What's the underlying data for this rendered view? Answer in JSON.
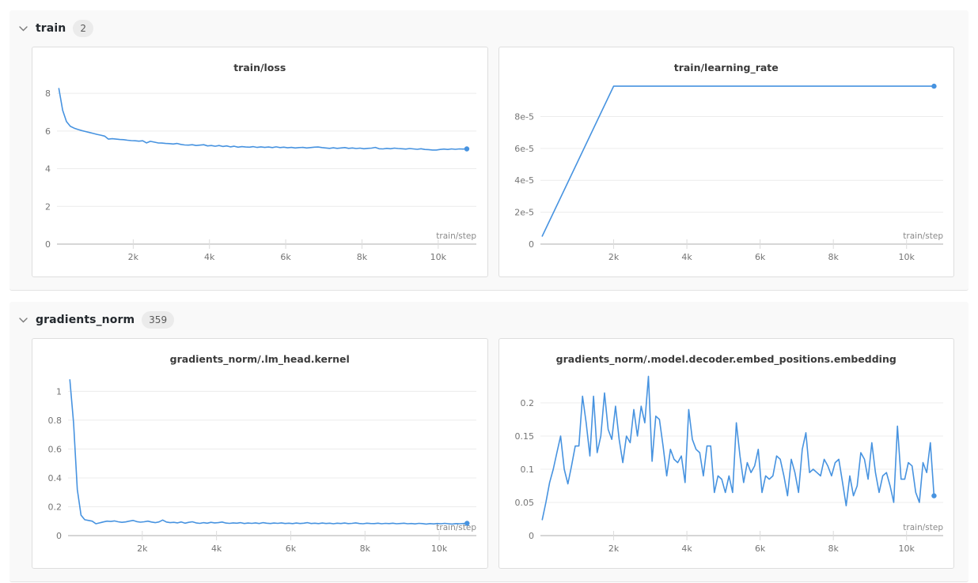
{
  "theme": {
    "line_color": "#4793e0",
    "grid_color": "#ececec",
    "baseline_color": "#c9c9c9",
    "tick_color": "#dcdcdc",
    "axis_text_color": "#757575",
    "axis_label_color": "#8a8a8a",
    "section_bg": "#f9f9f9",
    "panel_border": "#dedede"
  },
  "icons": {
    "section_collapse": "chevron-down-icon"
  },
  "sections": [
    {
      "title": "train",
      "count": "2",
      "chart_indexes": [
        0,
        1
      ]
    },
    {
      "title": "gradients_norm",
      "count": "359",
      "chart_indexes": [
        2,
        3
      ]
    }
  ],
  "chart_data": [
    {
      "type": "line",
      "title": "train/loss",
      "xlabel": "train/step",
      "legend_position": "none",
      "grid": "horizontal",
      "xlim": [
        0,
        11000
      ],
      "ylim": [
        0,
        8.8
      ],
      "xticks": {
        "values": [
          2000,
          4000,
          6000,
          8000,
          10000
        ],
        "labels": [
          "2k",
          "4k",
          "6k",
          "8k",
          "10k"
        ]
      },
      "yticks": {
        "values": [
          0,
          2,
          4,
          6,
          8
        ],
        "labels": [
          "0",
          "2",
          "4",
          "6",
          "8"
        ]
      },
      "end_dot": true,
      "x": [
        50,
        150,
        250,
        350,
        450,
        550,
        650,
        750,
        850,
        950,
        1050,
        1150,
        1250,
        1350,
        1450,
        1550,
        1650,
        1750,
        1850,
        1950,
        2050,
        2150,
        2250,
        2350,
        2450,
        2550,
        2650,
        2750,
        2850,
        2950,
        3050,
        3150,
        3250,
        3350,
        3450,
        3550,
        3650,
        3750,
        3850,
        3950,
        4050,
        4150,
        4250,
        4350,
        4450,
        4550,
        4650,
        4750,
        4850,
        4950,
        5050,
        5150,
        5250,
        5350,
        5450,
        5550,
        5650,
        5750,
        5850,
        5950,
        6050,
        6150,
        6250,
        6350,
        6450,
        6550,
        6650,
        6750,
        6850,
        6950,
        7050,
        7150,
        7250,
        7350,
        7450,
        7550,
        7650,
        7750,
        7850,
        7950,
        8050,
        8150,
        8250,
        8350,
        8450,
        8550,
        8650,
        8750,
        8850,
        8950,
        9050,
        9150,
        9250,
        9350,
        9450,
        9550,
        9650,
        9750,
        9850,
        9950,
        10050,
        10150,
        10250,
        10350,
        10450,
        10550,
        10650,
        10750
      ],
      "y": [
        8.25,
        7.1,
        6.5,
        6.25,
        6.15,
        6.08,
        6.02,
        5.97,
        5.92,
        5.87,
        5.82,
        5.78,
        5.73,
        5.57,
        5.59,
        5.57,
        5.55,
        5.54,
        5.51,
        5.49,
        5.48,
        5.46,
        5.48,
        5.37,
        5.45,
        5.41,
        5.37,
        5.36,
        5.34,
        5.33,
        5.31,
        5.34,
        5.29,
        5.26,
        5.25,
        5.27,
        5.23,
        5.25,
        5.27,
        5.21,
        5.23,
        5.19,
        5.23,
        5.18,
        5.21,
        5.16,
        5.19,
        5.14,
        5.17,
        5.15,
        5.14,
        5.17,
        5.13,
        5.16,
        5.13,
        5.15,
        5.12,
        5.16,
        5.12,
        5.14,
        5.11,
        5.13,
        5.1,
        5.12,
        5.13,
        5.1,
        5.12,
        5.14,
        5.15,
        5.12,
        5.1,
        5.08,
        5.11,
        5.08,
        5.1,
        5.12,
        5.08,
        5.1,
        5.07,
        5.09,
        5.06,
        5.08,
        5.09,
        5.13,
        5.06,
        5.05,
        5.08,
        5.06,
        5.09,
        5.07,
        5.06,
        5.04,
        5.07,
        5.05,
        5.03,
        5.06,
        5.02,
        5.01,
        4.99,
        4.99,
        5.02,
        5.04,
        5.02,
        5.05,
        5.03,
        5.05,
        5.04,
        5.05
      ]
    },
    {
      "type": "line",
      "title": "train/learning_rate",
      "xlabel": "train/step",
      "legend_position": "none",
      "grid": "horizontal",
      "xlim": [
        0,
        11000
      ],
      "ylim": [
        0,
        0.000104
      ],
      "xticks": {
        "values": [
          2000,
          4000,
          6000,
          8000,
          10000
        ],
        "labels": [
          "2k",
          "4k",
          "6k",
          "8k",
          "10k"
        ]
      },
      "yticks": {
        "values": [
          0,
          2e-05,
          4e-05,
          6e-05,
          8e-05
        ],
        "labels": [
          "0",
          "2e-5",
          "4e-5",
          "6e-5",
          "8e-5"
        ]
      },
      "end_dot": true,
      "x": [
        50,
        2000,
        10750
      ],
      "y": [
        5e-06,
        9.9e-05,
        9.9e-05
      ]
    },
    {
      "type": "line",
      "title": "gradients_norm/.lm_head.kernel",
      "xlabel": "train/step",
      "legend_position": "none",
      "grid": "horizontal",
      "xlim": [
        0,
        11000
      ],
      "ylim": [
        0,
        1.15
      ],
      "xticks": {
        "values": [
          2000,
          4000,
          6000,
          8000,
          10000
        ],
        "labels": [
          "2k",
          "4k",
          "6k",
          "8k",
          "10k"
        ]
      },
      "yticks": {
        "values": [
          0,
          0.2,
          0.4,
          0.6,
          0.8,
          1
        ],
        "labels": [
          "0",
          "0.2",
          "0.4",
          "0.6",
          "0.8",
          "1"
        ]
      },
      "end_dot": true,
      "x": [
        50,
        150,
        250,
        350,
        450,
        550,
        650,
        750,
        850,
        950,
        1050,
        1150,
        1250,
        1350,
        1450,
        1550,
        1650,
        1750,
        1850,
        1950,
        2050,
        2150,
        2250,
        2350,
        2450,
        2550,
        2650,
        2750,
        2850,
        2950,
        3050,
        3150,
        3250,
        3350,
        3450,
        3550,
        3650,
        3750,
        3850,
        3950,
        4050,
        4150,
        4250,
        4350,
        4450,
        4550,
        4650,
        4750,
        4850,
        4950,
        5050,
        5150,
        5250,
        5350,
        5450,
        5550,
        5650,
        5750,
        5850,
        5950,
        6050,
        6150,
        6250,
        6350,
        6450,
        6550,
        6650,
        6750,
        6850,
        6950,
        7050,
        7150,
        7250,
        7350,
        7450,
        7550,
        7650,
        7750,
        7850,
        7950,
        8050,
        8150,
        8250,
        8350,
        8450,
        8550,
        8650,
        8750,
        8850,
        8950,
        9050,
        9150,
        9250,
        9350,
        9450,
        9550,
        9650,
        9750,
        9850,
        9950,
        10050,
        10150,
        10250,
        10350,
        10450,
        10550,
        10650,
        10750
      ],
      "y": [
        1.08,
        0.78,
        0.32,
        0.142,
        0.11,
        0.105,
        0.1,
        0.082,
        0.088,
        0.095,
        0.1,
        0.098,
        0.102,
        0.096,
        0.092,
        0.095,
        0.1,
        0.105,
        0.097,
        0.093,
        0.096,
        0.1,
        0.094,
        0.09,
        0.095,
        0.108,
        0.094,
        0.09,
        0.092,
        0.088,
        0.095,
        0.086,
        0.092,
        0.096,
        0.088,
        0.085,
        0.09,
        0.086,
        0.092,
        0.088,
        0.09,
        0.094,
        0.087,
        0.085,
        0.088,
        0.086,
        0.09,
        0.084,
        0.087,
        0.085,
        0.088,
        0.084,
        0.09,
        0.086,
        0.084,
        0.087,
        0.085,
        0.088,
        0.084,
        0.086,
        0.083,
        0.087,
        0.084,
        0.086,
        0.09,
        0.084,
        0.086,
        0.083,
        0.087,
        0.084,
        0.086,
        0.082,
        0.086,
        0.084,
        0.087,
        0.083,
        0.085,
        0.088,
        0.084,
        0.082,
        0.086,
        0.084,
        0.083,
        0.086,
        0.082,
        0.085,
        0.083,
        0.086,
        0.082,
        0.084,
        0.086,
        0.082,
        0.084,
        0.081,
        0.085,
        0.083,
        0.08,
        0.083,
        0.081,
        0.084,
        0.082,
        0.085,
        0.082,
        0.08,
        0.083,
        0.082,
        0.084,
        0.085
      ]
    },
    {
      "type": "line",
      "title": "gradients_norm/.model.decoder.embed_positions.embedding",
      "xlabel": "train/step",
      "legend_position": "none",
      "grid": "horizontal",
      "xlim": [
        0,
        11000
      ],
      "ylim": [
        0,
        0.25
      ],
      "xticks": {
        "values": [
          2000,
          4000,
          6000,
          8000,
          10000
        ],
        "labels": [
          "2k",
          "4k",
          "6k",
          "8k",
          "10k"
        ]
      },
      "yticks": {
        "values": [
          0,
          0.05,
          0.1,
          0.15,
          0.2
        ],
        "labels": [
          "0",
          "0.05",
          "0.1",
          "0.15",
          "0.2"
        ]
      },
      "end_dot": true,
      "x": [
        50,
        150,
        250,
        350,
        450,
        550,
        650,
        750,
        850,
        950,
        1050,
        1150,
        1250,
        1350,
        1450,
        1550,
        1650,
        1750,
        1850,
        1950,
        2050,
        2150,
        2250,
        2350,
        2450,
        2550,
        2650,
        2750,
        2850,
        2950,
        3050,
        3150,
        3250,
        3350,
        3450,
        3550,
        3650,
        3750,
        3850,
        3950,
        4050,
        4150,
        4250,
        4350,
        4450,
        4550,
        4650,
        4750,
        4850,
        4950,
        5050,
        5150,
        5250,
        5350,
        5450,
        5550,
        5650,
        5750,
        5850,
        5950,
        6050,
        6150,
        6250,
        6350,
        6450,
        6550,
        6650,
        6750,
        6850,
        6950,
        7050,
        7150,
        7250,
        7350,
        7450,
        7550,
        7650,
        7750,
        7850,
        7950,
        8050,
        8150,
        8250,
        8350,
        8450,
        8550,
        8650,
        8750,
        8850,
        8950,
        9050,
        9150,
        9250,
        9350,
        9450,
        9550,
        9650,
        9750,
        9850,
        9950,
        10050,
        10150,
        10250,
        10350,
        10450,
        10550,
        10650,
        10750
      ],
      "y": [
        0.024,
        0.05,
        0.08,
        0.1,
        0.125,
        0.15,
        0.1,
        0.078,
        0.105,
        0.135,
        0.135,
        0.21,
        0.17,
        0.12,
        0.21,
        0.125,
        0.15,
        0.215,
        0.16,
        0.145,
        0.195,
        0.145,
        0.11,
        0.15,
        0.14,
        0.19,
        0.15,
        0.195,
        0.17,
        0.24,
        0.112,
        0.18,
        0.175,
        0.135,
        0.09,
        0.13,
        0.115,
        0.11,
        0.12,
        0.08,
        0.19,
        0.145,
        0.13,
        0.125,
        0.09,
        0.135,
        0.135,
        0.065,
        0.09,
        0.085,
        0.065,
        0.09,
        0.065,
        0.17,
        0.12,
        0.08,
        0.11,
        0.095,
        0.105,
        0.13,
        0.065,
        0.09,
        0.085,
        0.09,
        0.12,
        0.115,
        0.09,
        0.06,
        0.115,
        0.095,
        0.065,
        0.13,
        0.155,
        0.095,
        0.1,
        0.095,
        0.09,
        0.115,
        0.105,
        0.09,
        0.11,
        0.115,
        0.08,
        0.045,
        0.09,
        0.06,
        0.075,
        0.125,
        0.115,
        0.085,
        0.14,
        0.095,
        0.065,
        0.09,
        0.095,
        0.075,
        0.05,
        0.165,
        0.085,
        0.085,
        0.11,
        0.105,
        0.065,
        0.05,
        0.11,
        0.095,
        0.14,
        0.06
      ]
    }
  ]
}
